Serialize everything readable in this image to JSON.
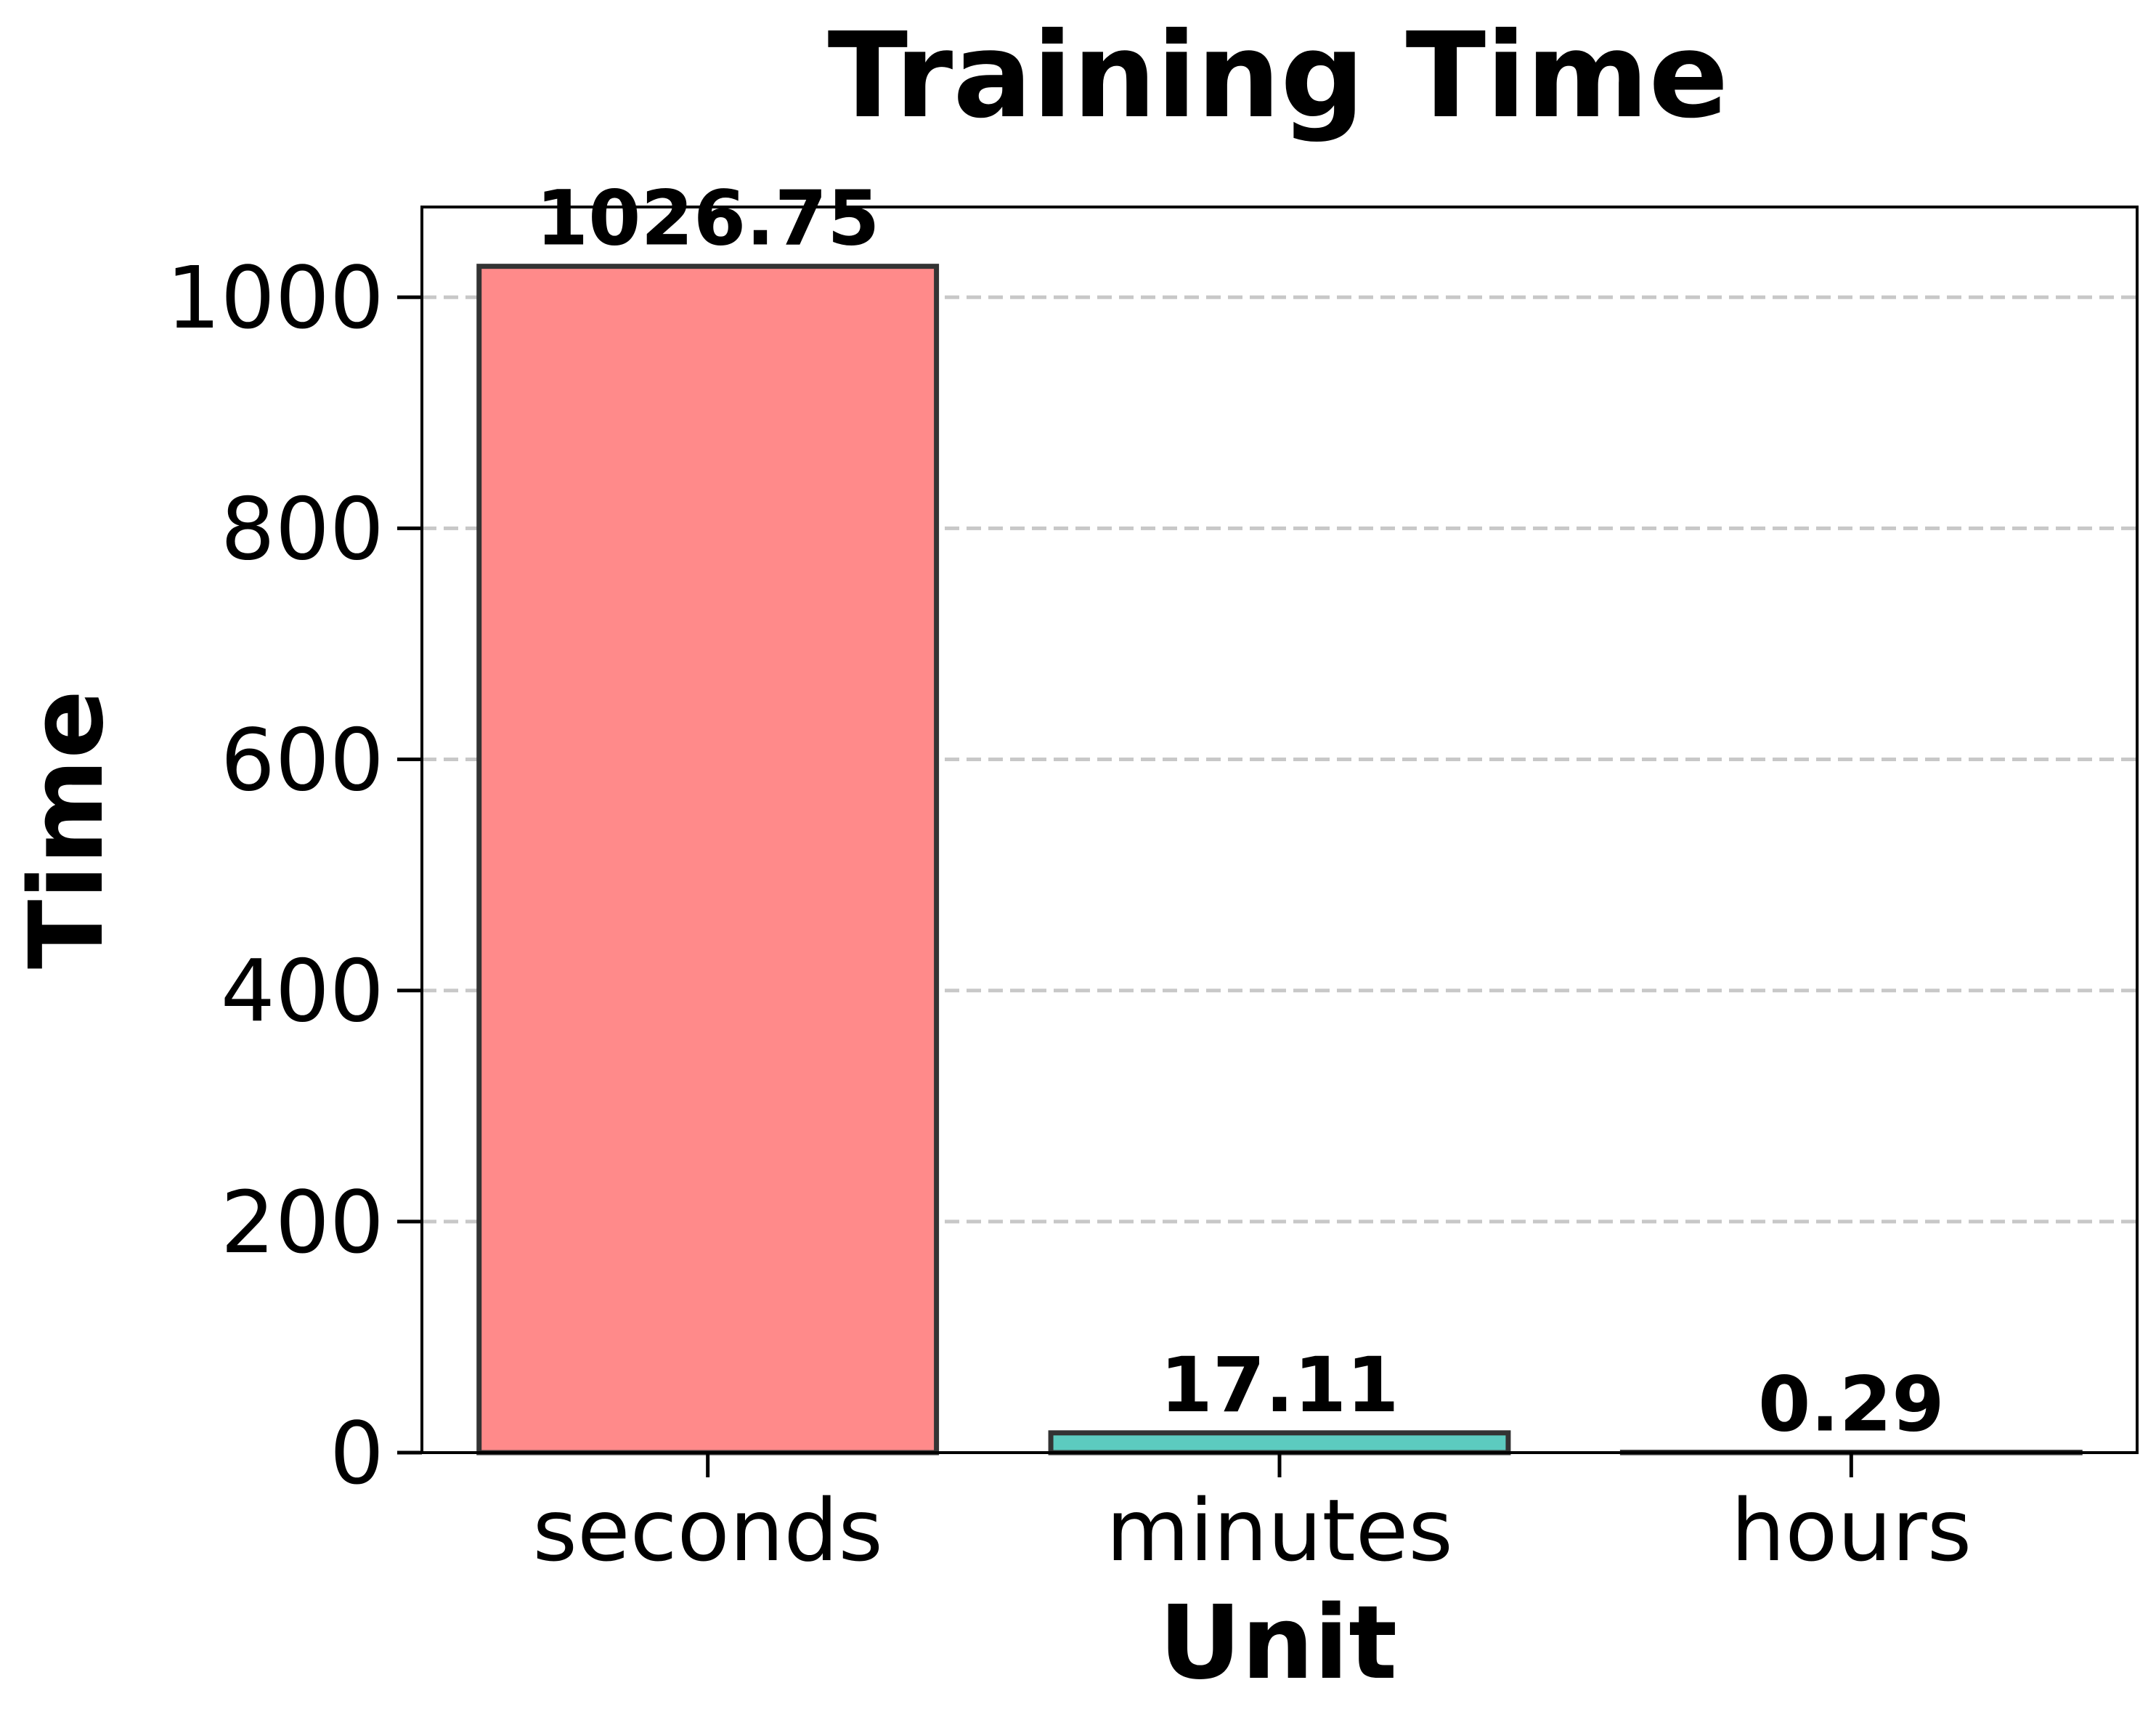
{
  "chart_data": {
    "type": "bar",
    "title": "Training Time",
    "xlabel": "Unit",
    "ylabel": "Time",
    "categories": [
      "seconds",
      "minutes",
      "hours"
    ],
    "values": [
      1026.75,
      17.11,
      0.29
    ],
    "value_labels": [
      "1026.75",
      "17.11",
      "0.29"
    ],
    "colors": [
      "#ff8a8a",
      "#5ccbbf",
      "#4f8fd6"
    ],
    "edge_color": "#333333",
    "ylim": [
      0,
      1078.09
    ],
    "yticks": [
      0,
      200,
      400,
      600,
      800,
      1000
    ],
    "ytick_labels": [
      "0",
      "200",
      "400",
      "600",
      "800",
      "1000"
    ],
    "grid": "y-dashed",
    "legend": "none"
  }
}
